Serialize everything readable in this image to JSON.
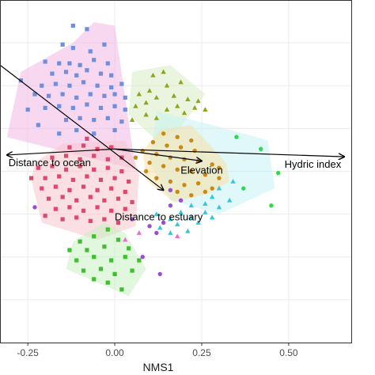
{
  "chart_data": {
    "type": "scatter",
    "xlabel": "NMS1",
    "ylabel": "",
    "xlim": [
      -0.33,
      0.68
    ],
    "ylim": [
      -1.0,
      1.0
    ],
    "x_ticks": [
      "-0.25",
      "0.00",
      "0.25",
      "0.50"
    ],
    "x_tick_values": [
      -0.25,
      0.0,
      0.25,
      0.5
    ],
    "grid": true,
    "background": "#ffffff",
    "grid_color": "#ebebeb",
    "colors": {
      "blue": "#6f8fdc",
      "olive": "#8fa31c",
      "orange": "#c98a14",
      "pink": "#e0476d",
      "green": "#3fbf2f",
      "cyan": "#35c6d8",
      "purple": "#9b4fd0"
    },
    "hulls": [
      {
        "color": "#f2b6e6",
        "points": [
          [
            -0.06,
            0.87
          ],
          [
            0.0,
            0.85
          ],
          [
            0.06,
            0.01
          ],
          [
            -0.31,
            0.2
          ],
          [
            -0.27,
            0.58
          ],
          [
            -0.12,
            0.75
          ]
        ]
      },
      {
        "color": "#d9ecc4",
        "points": [
          [
            0.05,
            0.58
          ],
          [
            0.16,
            0.62
          ],
          [
            0.26,
            0.45
          ],
          [
            0.19,
            0.26
          ],
          [
            0.12,
            0.18
          ],
          [
            0.04,
            0.33
          ]
        ]
      },
      {
        "color": "#c7f2f4",
        "points": [
          [
            0.12,
            0.35
          ],
          [
            0.3,
            0.26
          ],
          [
            0.44,
            0.18
          ],
          [
            0.46,
            -0.1
          ],
          [
            0.3,
            -0.25
          ],
          [
            0.16,
            -0.17
          ],
          [
            0.1,
            0.05
          ]
        ]
      },
      {
        "color": "#f5e0a6",
        "points": [
          [
            0.13,
            0.24
          ],
          [
            0.22,
            0.27
          ],
          [
            0.32,
            0.05
          ],
          [
            0.33,
            -0.06
          ],
          [
            0.27,
            -0.13
          ],
          [
            0.17,
            -0.18
          ],
          [
            0.09,
            -0.05
          ],
          [
            0.08,
            0.12
          ]
        ]
      },
      {
        "color": "#f6c6cc",
        "points": [
          [
            -0.15,
            0.16
          ],
          [
            0.03,
            0.18
          ],
          [
            0.07,
            0.0
          ],
          [
            0.06,
            -0.32
          ],
          [
            -0.05,
            -0.4
          ],
          [
            -0.21,
            -0.3
          ],
          [
            -0.24,
            -0.05
          ],
          [
            -0.23,
            0.05
          ]
        ]
      },
      {
        "color": "#c9f0c3",
        "points": [
          [
            -0.03,
            -0.3
          ],
          [
            0.03,
            -0.36
          ],
          [
            0.09,
            -0.57
          ],
          [
            0.04,
            -0.73
          ],
          [
            -0.05,
            -0.65
          ],
          [
            -0.14,
            -0.57
          ],
          [
            -0.12,
            -0.41
          ]
        ]
      }
    ],
    "series": [
      {
        "shape": "square",
        "color": "#6f8fdc",
        "points": [
          [
            -0.12,
            0.85
          ],
          [
            -0.08,
            0.83
          ],
          [
            -0.15,
            0.74
          ],
          [
            -0.12,
            0.72
          ],
          [
            -0.07,
            0.7
          ],
          [
            -0.03,
            0.74
          ],
          [
            -0.2,
            0.64
          ],
          [
            -0.16,
            0.63
          ],
          [
            -0.13,
            0.63
          ],
          [
            -0.1,
            0.62
          ],
          [
            -0.06,
            0.65
          ],
          [
            -0.02,
            0.63
          ],
          [
            -0.18,
            0.57
          ],
          [
            -0.14,
            0.58
          ],
          [
            -0.11,
            0.56
          ],
          [
            -0.08,
            0.59
          ],
          [
            -0.04,
            0.57
          ],
          [
            -0.01,
            0.56
          ],
          [
            -0.21,
            0.5
          ],
          [
            -0.17,
            0.51
          ],
          [
            -0.13,
            0.5
          ],
          [
            -0.09,
            0.52
          ],
          [
            -0.05,
            0.5
          ],
          [
            -0.01,
            0.49
          ],
          [
            0.02,
            0.51
          ],
          [
            -0.23,
            0.45
          ],
          [
            -0.19,
            0.44
          ],
          [
            -0.15,
            0.45
          ],
          [
            -0.11,
            0.43
          ],
          [
            -0.07,
            0.45
          ],
          [
            -0.03,
            0.44
          ],
          [
            0.0,
            0.45
          ],
          [
            0.03,
            0.43
          ],
          [
            -0.2,
            0.37
          ],
          [
            -0.16,
            0.38
          ],
          [
            -0.12,
            0.37
          ],
          [
            -0.08,
            0.39
          ],
          [
            -0.04,
            0.37
          ],
          [
            0.0,
            0.38
          ],
          [
            0.03,
            0.36
          ],
          [
            -0.14,
            0.3
          ],
          [
            -0.1,
            0.31
          ],
          [
            -0.06,
            0.3
          ],
          [
            -0.02,
            0.31
          ],
          [
            0.02,
            0.29
          ],
          [
            -0.25,
            0.36
          ],
          [
            -0.27,
            0.53
          ],
          [
            -0.16,
            0.22
          ],
          [
            -0.11,
            0.24
          ],
          [
            -0.06,
            0.22
          ],
          [
            0.0,
            0.24
          ],
          [
            -0.22,
            0.27
          ]
        ]
      },
      {
        "shape": "triangle",
        "color": "#8fa31c",
        "points": [
          [
            0.11,
            0.56
          ],
          [
            0.14,
            0.58
          ],
          [
            0.19,
            0.52
          ],
          [
            0.15,
            0.5
          ],
          [
            0.1,
            0.47
          ],
          [
            0.07,
            0.45
          ],
          [
            0.12,
            0.43
          ],
          [
            0.17,
            0.44
          ],
          [
            0.21,
            0.42
          ],
          [
            0.24,
            0.41
          ],
          [
            0.18,
            0.38
          ],
          [
            0.15,
            0.36
          ],
          [
            0.09,
            0.4
          ],
          [
            0.06,
            0.38
          ],
          [
            0.2,
            0.34
          ],
          [
            0.23,
            0.37
          ],
          [
            0.26,
            0.36
          ],
          [
            0.12,
            0.31
          ],
          [
            0.09,
            0.33
          ],
          [
            0.05,
            0.3
          ]
        ]
      },
      {
        "shape": "circle",
        "color": "#c98a14",
        "points": [
          [
            0.14,
            0.22
          ],
          [
            0.18,
            0.2
          ],
          [
            0.22,
            0.18
          ],
          [
            0.11,
            0.17
          ],
          [
            0.15,
            0.15
          ],
          [
            0.19,
            0.14
          ],
          [
            0.23,
            0.12
          ],
          [
            0.08,
            0.12
          ],
          [
            0.12,
            0.1
          ],
          [
            0.16,
            0.08
          ],
          [
            0.2,
            0.07
          ],
          [
            0.24,
            0.06
          ],
          [
            0.28,
            0.04
          ],
          [
            0.1,
            0.05
          ],
          [
            0.14,
            0.03
          ],
          [
            0.18,
            0.01
          ],
          [
            0.22,
            0.0
          ],
          [
            0.26,
            -0.02
          ],
          [
            0.3,
            -0.04
          ],
          [
            0.12,
            -0.04
          ],
          [
            0.16,
            -0.06
          ],
          [
            0.2,
            -0.08
          ],
          [
            0.24,
            -0.07
          ],
          [
            0.28,
            -0.1
          ],
          [
            0.18,
            -0.12
          ],
          [
            0.22,
            -0.14
          ],
          [
            0.26,
            -0.12
          ],
          [
            0.3,
            0.02
          ],
          [
            0.09,
            0.0
          ],
          [
            0.06,
            0.08
          ]
        ]
      },
      {
        "shape": "square",
        "color": "#e0476d",
        "points": [
          [
            -0.13,
            0.14
          ],
          [
            -0.09,
            0.15
          ],
          [
            -0.05,
            0.13
          ],
          [
            -0.01,
            0.14
          ],
          [
            -0.18,
            0.08
          ],
          [
            -0.14,
            0.09
          ],
          [
            -0.1,
            0.07
          ],
          [
            -0.06,
            0.09
          ],
          [
            -0.02,
            0.07
          ],
          [
            0.02,
            0.08
          ],
          [
            -0.22,
            0.02
          ],
          [
            -0.18,
            0.03
          ],
          [
            -0.14,
            0.01
          ],
          [
            -0.1,
            0.03
          ],
          [
            -0.06,
            0.01
          ],
          [
            -0.02,
            0.02
          ],
          [
            0.02,
            0.0
          ],
          [
            -0.2,
            -0.04
          ],
          [
            -0.16,
            -0.03
          ],
          [
            -0.12,
            -0.05
          ],
          [
            -0.08,
            -0.03
          ],
          [
            -0.04,
            -0.05
          ],
          [
            0.0,
            -0.04
          ],
          [
            0.04,
            -0.06
          ],
          [
            -0.21,
            -0.1
          ],
          [
            -0.17,
            -0.09
          ],
          [
            -0.13,
            -0.11
          ],
          [
            -0.09,
            -0.09
          ],
          [
            -0.05,
            -0.11
          ],
          [
            -0.01,
            -0.1
          ],
          [
            0.03,
            -0.12
          ],
          [
            -0.19,
            -0.16
          ],
          [
            -0.15,
            -0.15
          ],
          [
            -0.11,
            -0.17
          ],
          [
            -0.07,
            -0.15
          ],
          [
            -0.03,
            -0.17
          ],
          [
            0.01,
            -0.16
          ],
          [
            0.05,
            -0.18
          ],
          [
            -0.17,
            -0.22
          ],
          [
            -0.13,
            -0.21
          ],
          [
            -0.09,
            -0.23
          ],
          [
            -0.05,
            -0.21
          ],
          [
            -0.01,
            -0.23
          ],
          [
            0.03,
            -0.22
          ],
          [
            -0.15,
            -0.28
          ],
          [
            -0.11,
            -0.27
          ],
          [
            -0.07,
            -0.29
          ],
          [
            -0.03,
            -0.28
          ],
          [
            0.01,
            -0.3
          ],
          [
            -0.2,
            -0.26
          ],
          [
            -0.24,
            -0.04
          ],
          [
            -0.08,
            0.19
          ]
        ]
      },
      {
        "shape": "square",
        "color": "#3fbf2f",
        "points": [
          [
            -0.02,
            -0.34
          ],
          [
            -0.06,
            -0.38
          ],
          [
            -0.1,
            -0.41
          ],
          [
            -0.13,
            -0.46
          ],
          [
            -0.08,
            -0.46
          ],
          [
            -0.03,
            -0.44
          ],
          [
            0.01,
            -0.4
          ],
          [
            0.04,
            -0.45
          ],
          [
            -0.11,
            -0.52
          ],
          [
            -0.06,
            -0.5
          ],
          [
            -0.01,
            -0.52
          ],
          [
            0.03,
            -0.5
          ],
          [
            0.07,
            -0.52
          ],
          [
            -0.09,
            -0.58
          ],
          [
            -0.04,
            -0.57
          ],
          [
            0.0,
            -0.6
          ],
          [
            0.05,
            -0.58
          ],
          [
            -0.02,
            -0.65
          ],
          [
            0.02,
            -0.69
          ],
          [
            -0.06,
            -0.63
          ]
        ]
      },
      {
        "shape": "triangle",
        "color": "#35c6d8",
        "points": [
          [
            0.34,
            -0.06
          ],
          [
            0.3,
            -0.1
          ],
          [
            0.28,
            -0.15
          ],
          [
            0.26,
            -0.19
          ],
          [
            0.22,
            -0.2
          ],
          [
            0.19,
            -0.24
          ],
          [
            0.16,
            -0.28
          ],
          [
            0.22,
            -0.27
          ],
          [
            0.26,
            -0.24
          ],
          [
            0.3,
            -0.21
          ],
          [
            0.33,
            -0.17
          ],
          [
            0.13,
            -0.33
          ],
          [
            0.18,
            -0.31
          ],
          [
            0.24,
            -0.3
          ],
          [
            0.21,
            -0.35
          ],
          [
            0.16,
            -0.36
          ],
          [
            0.28,
            -0.27
          ],
          [
            0.12,
            -0.25
          ]
        ]
      },
      {
        "shape": "circle",
        "color": "#9b4fd0",
        "points": [
          [
            -0.23,
            -0.21
          ],
          [
            0.05,
            -0.28
          ],
          [
            0.1,
            -0.32
          ],
          [
            0.16,
            -0.2
          ],
          [
            0.19,
            -0.17
          ],
          [
            0.16,
            -0.11
          ],
          [
            0.14,
            -0.3
          ],
          [
            0.13,
            -0.6
          ],
          [
            0.12,
            -0.36
          ],
          [
            0.08,
            -0.5
          ]
        ]
      },
      {
        "shape": "triangle",
        "color": "#e96ed2",
        "points": [
          [
            0.03,
            -0.4
          ],
          [
            0.07,
            -0.36
          ],
          [
            0.18,
            -0.38
          ]
        ]
      },
      {
        "shape": "circle",
        "color": "#2dd94f",
        "points": [
          [
            0.42,
            0.13
          ],
          [
            0.47,
            -0.01
          ],
          [
            0.45,
            -0.2
          ],
          [
            0.37,
            -0.1
          ],
          [
            0.35,
            0.2
          ]
        ]
      }
    ],
    "vectors": [
      {
        "label": "Hydric index",
        "x0": 0.0,
        "y0": 0.13,
        "x1": 0.66,
        "y1": 0.085,
        "label_anchor": "end"
      },
      {
        "label": "Distance to ocean",
        "x0": 0.0,
        "y0": 0.13,
        "x1": -0.31,
        "y1": 0.095,
        "label_anchor": "start"
      },
      {
        "label": "Elevation",
        "x0": 0.0,
        "y0": 0.13,
        "x1": 0.25,
        "y1": 0.06,
        "label_anchor": "middle"
      },
      {
        "label": "Distance to estuary",
        "x0": -0.33,
        "y0": 0.62,
        "x1": 0.14,
        "y1": -0.11,
        "label_anchor": "middle"
      }
    ]
  }
}
